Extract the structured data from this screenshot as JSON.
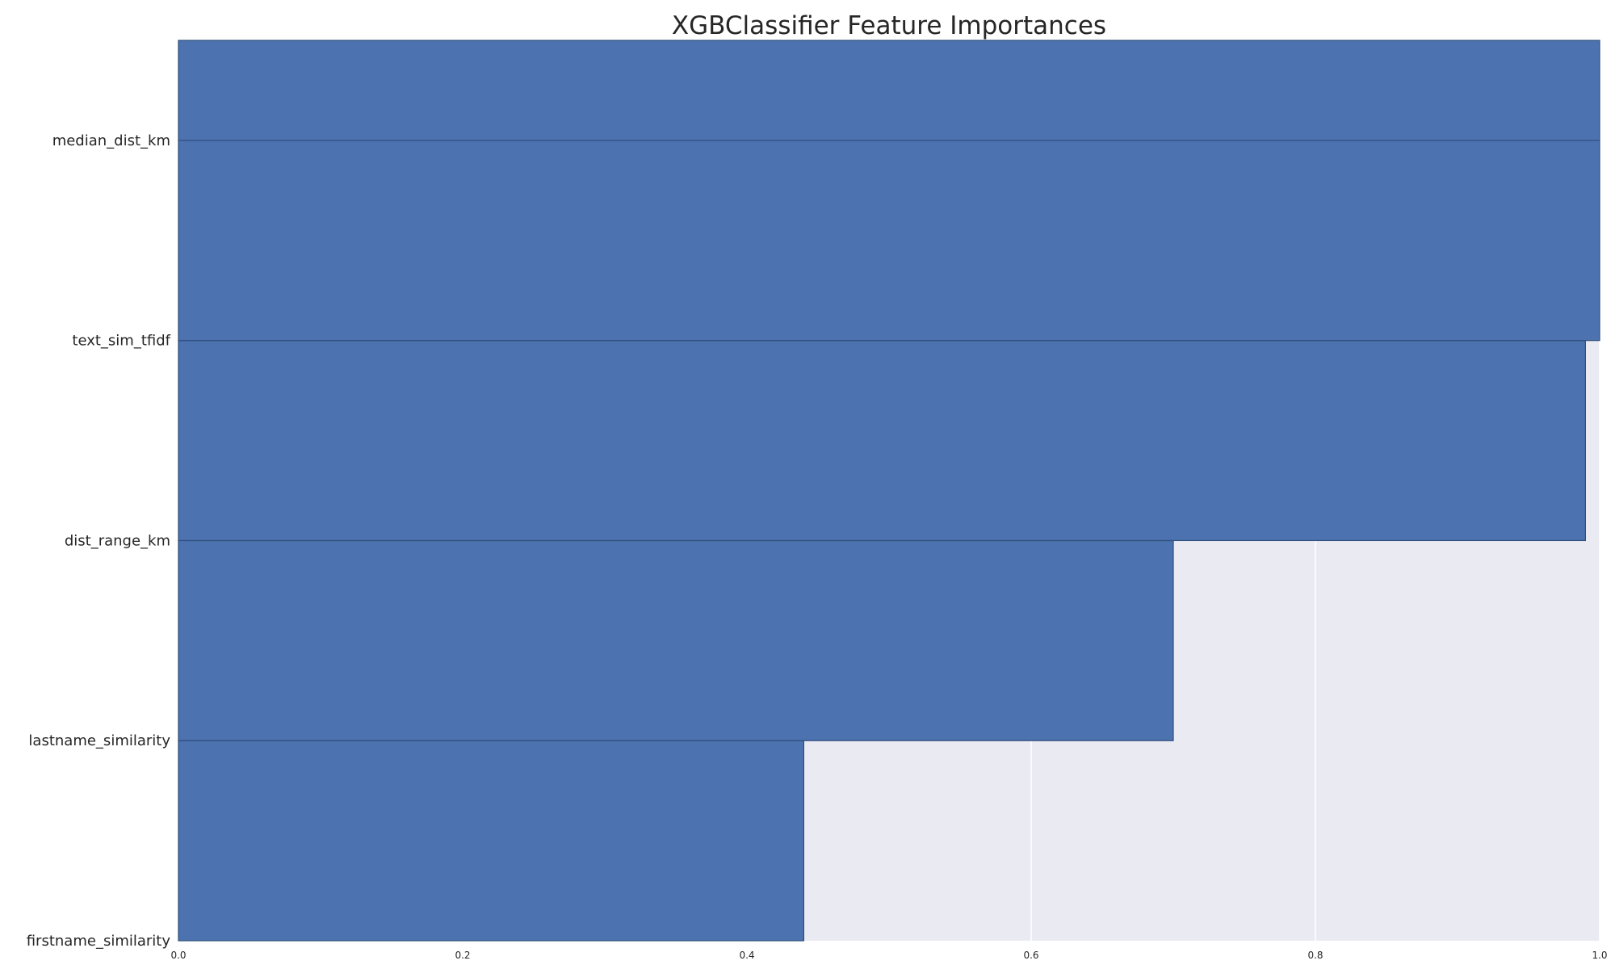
{
  "chart_data": {
    "type": "bar",
    "orientation": "horizontal",
    "title": "XGBClassifier Feature Importances",
    "xlabel": "",
    "ylabel": "",
    "categories": [
      "firstname_similarity",
      "lastname_similarity",
      "dist_range_km",
      "text_sim_tfidf",
      "median_dist_km"
    ],
    "values": [
      0.44,
      0.7,
      0.99,
      1.0,
      1.0
    ],
    "xlim": [
      0.0,
      1.0
    ],
    "xticks": [
      "0.0",
      "0.2",
      "0.4",
      "0.6",
      "0.8",
      "1.0"
    ],
    "grid": true,
    "legend": "none",
    "colors": {
      "bar": "#4c72b0",
      "bar_edge": "#2f4f7a",
      "background": "#eaeaf2",
      "grid": "#ffffff",
      "text": "#262626"
    }
  }
}
